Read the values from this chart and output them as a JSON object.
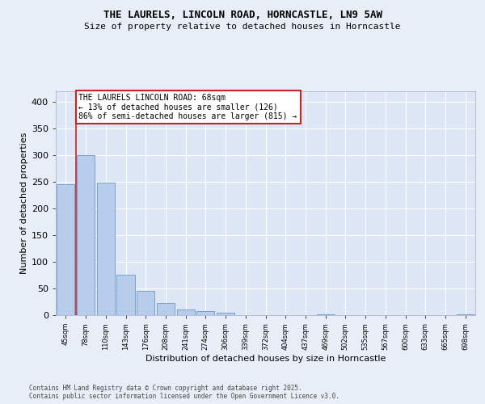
{
  "title_line1": "THE LAURELS, LINCOLN ROAD, HORNCASTLE, LN9 5AW",
  "title_line2": "Size of property relative to detached houses in Horncastle",
  "xlabel": "Distribution of detached houses by size in Horncastle",
  "ylabel": "Number of detached properties",
  "categories": [
    "45sqm",
    "78sqm",
    "110sqm",
    "143sqm",
    "176sqm",
    "208sqm",
    "241sqm",
    "274sqm",
    "306sqm",
    "339sqm",
    "372sqm",
    "404sqm",
    "437sqm",
    "469sqm",
    "502sqm",
    "535sqm",
    "567sqm",
    "600sqm",
    "633sqm",
    "665sqm",
    "698sqm"
  ],
  "values": [
    245,
    300,
    248,
    75,
    45,
    22,
    10,
    8,
    5,
    0,
    0,
    0,
    0,
    2,
    0,
    0,
    0,
    0,
    0,
    0,
    2
  ],
  "bar_color": "#b8ccec",
  "bar_edge_color": "#6699cc",
  "vline_color": "#cc2222",
  "vline_x": 0.5,
  "annotation_text": "THE LAURELS LINCOLN ROAD: 68sqm\n← 13% of detached houses are smaller (126)\n86% of semi-detached houses are larger (815) →",
  "annotation_box_facecolor": "#ffffff",
  "annotation_box_edgecolor": "#cc2222",
  "footer_text": "Contains HM Land Registry data © Crown copyright and database right 2025.\nContains public sector information licensed under the Open Government Licence v3.0.",
  "ylim_max": 420,
  "yticks": [
    0,
    50,
    100,
    150,
    200,
    250,
    300,
    350,
    400
  ],
  "fig_bg_color": "#e8eef8",
  "plot_bg_color": "#dde6f5",
  "grid_color": "#ffffff",
  "title1_fontsize": 9,
  "title2_fontsize": 8,
  "ylabel_fontsize": 8,
  "xlabel_fontsize": 8,
  "ytick_fontsize": 8,
  "xtick_fontsize": 6,
  "annot_fontsize": 7,
  "footer_fontsize": 5.5
}
